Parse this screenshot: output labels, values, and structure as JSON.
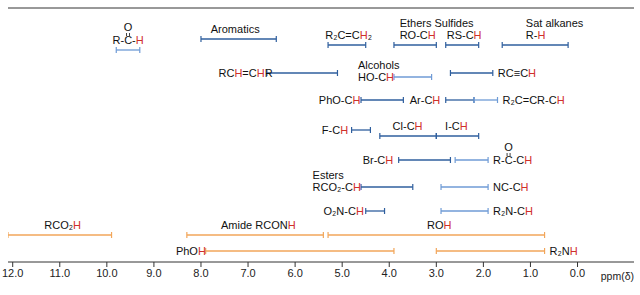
{
  "chart_data": {
    "type": "range",
    "xlabel": "ppm(δ)",
    "xlim": [
      12.1,
      -1.2
    ],
    "xticks": [
      {
        "value": 12,
        "label": "12.0"
      },
      {
        "value": 11,
        "label": "11.0"
      },
      {
        "value": 10,
        "label": "10.0"
      },
      {
        "value": 9,
        "label": "9.0"
      },
      {
        "value": 8,
        "label": "8.0"
      },
      {
        "value": 7,
        "label": "7.0"
      },
      {
        "value": 6,
        "label": "6.0"
      },
      {
        "value": 5,
        "label": "5.0"
      },
      {
        "value": 4,
        "label": "4.0"
      },
      {
        "value": 3,
        "label": "3.0"
      },
      {
        "value": 2,
        "label": "2.0"
      },
      {
        "value": 1,
        "label": "1.0"
      },
      {
        "value": 0,
        "label": "0.0"
      }
    ],
    "tick_labels": "x",
    "ranges": [
      {
        "label": "R-C-H",
        "label_top": "O",
        "range": [
          9.8,
          9.3
        ],
        "color": "#6f9bd6"
      },
      {
        "label": "Aromatics",
        "range": [
          8.0,
          6.4
        ],
        "color": "#2f5f9e"
      },
      {
        "label": "R₂C=CH₂",
        "range": [
          5.3,
          4.5
        ],
        "color": "#2f5f9e"
      },
      {
        "label": "RO-CH",
        "group": "Ethers Sulfides",
        "range": [
          3.9,
          3.0
        ],
        "color": "#2f5f9e"
      },
      {
        "label": "RS-CH",
        "range": [
          2.8,
          2.1
        ],
        "color": "#2f5f9e"
      },
      {
        "label": "R-H",
        "group": "Sat alkanes",
        "range": [
          1.6,
          0.2
        ],
        "color": "#2f5f9e"
      },
      {
        "label": "RCH=CHR",
        "range": [
          6.6,
          5.1
        ],
        "color": "#2f5f9e"
      },
      {
        "label": "HO-CH",
        "group": "Alcohols",
        "range": [
          3.9,
          3.1
        ],
        "color": "#6f9bd6"
      },
      {
        "label": "RC≡CH",
        "range": [
          2.7,
          1.8
        ],
        "color": "#2f5f9e"
      },
      {
        "label": "PhO-CH",
        "range": [
          4.6,
          3.7
        ],
        "color": "#2f5f9e"
      },
      {
        "label": "Ar-CH",
        "range": [
          2.8,
          2.2
        ],
        "color": "#2f5f9e"
      },
      {
        "label": "R₂C=CR-CH",
        "range": [
          2.2,
          1.7
        ],
        "color": "#6f9bd6"
      },
      {
        "label": "F-CH",
        "range": [
          4.8,
          4.4
        ],
        "color": "#2f5f9e"
      },
      {
        "label": "Cl-CH",
        "range": [
          4.2,
          3.0
        ],
        "color": "#2f5f9e"
      },
      {
        "label": "I-CH",
        "range": [
          3.0,
          2.1
        ],
        "color": "#2f5f9e"
      },
      {
        "label": "Br-CH",
        "range": [
          3.8,
          2.7
        ],
        "color": "#2f5f9e"
      },
      {
        "label": "R-C-CH",
        "label_top": "O",
        "range": [
          2.6,
          1.9
        ],
        "color": "#6f9bd6"
      },
      {
        "label": "RCO₂-CH",
        "group": "Esters",
        "range": [
          4.6,
          3.5
        ],
        "color": "#2f5f9e"
      },
      {
        "label": "NC-CH",
        "range": [
          2.9,
          1.9
        ],
        "color": "#6f9bd6"
      },
      {
        "label": "O₂N-CH",
        "range": [
          4.5,
          4.1
        ],
        "color": "#2f5f9e"
      },
      {
        "label": "R₂N-CH",
        "range": [
          2.9,
          1.9
        ],
        "color": "#6f9bd6"
      },
      {
        "label": "RCO₂H",
        "range": [
          12.1,
          9.9
        ],
        "color": "#f2a65a"
      },
      {
        "label": "Amide RCONH",
        "range": [
          8.3,
          5.4
        ],
        "color": "#f2a65a"
      },
      {
        "label": "ROH",
        "range": [
          5.3,
          0.7
        ],
        "color": "#f2a65a"
      },
      {
        "label": "PhOH",
        "range": [
          7.9,
          3.9
        ],
        "color": "#f2a65a"
      },
      {
        "label": "R₂NH",
        "range": [
          3.0,
          0.7
        ],
        "color": "#f2a65a"
      }
    ]
  }
}
